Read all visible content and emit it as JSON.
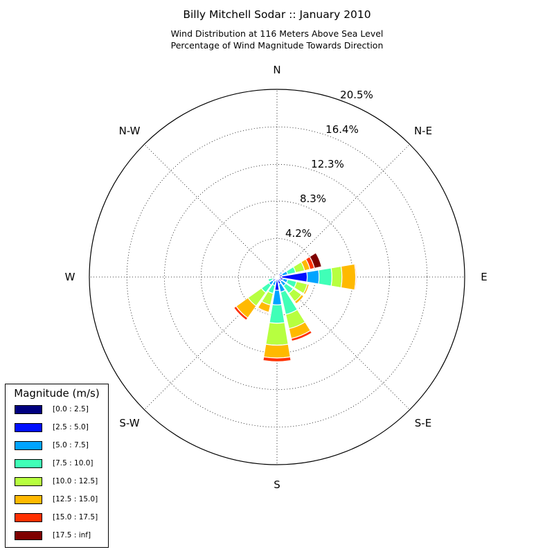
{
  "chart_data": {
    "type": "wind-rose",
    "title": "Billy Mitchell Sodar :: January 2010",
    "subtitle_lines": [
      "Wind Distribution at 116 Meters Above Sea Level",
      "Percentage of Wind Magnitude Towards Direction"
    ],
    "direction_labels": [
      {
        "name": "N",
        "angle": 0
      },
      {
        "name": "N-E",
        "angle": 45
      },
      {
        "name": "E",
        "angle": 90
      },
      {
        "name": "S-E",
        "angle": 135
      },
      {
        "name": "S",
        "angle": 180
      },
      {
        "name": "S-W",
        "angle": 225
      },
      {
        "name": "W",
        "angle": 270
      },
      {
        "name": "N-W",
        "angle": 315
      }
    ],
    "radial_ticks": [
      4.2,
      8.3,
      12.3,
      16.4,
      20.5
    ],
    "radial_tick_labels": [
      "4.2%",
      "8.3%",
      "12.3%",
      "16.4%",
      "20.5%"
    ],
    "rmax": 20.5,
    "legend_title": "Magnitude (m/s)",
    "bins": [
      {
        "label": "[0.0 : 2.5]",
        "color": "#00007f"
      },
      {
        "label": "[2.5 : 5.0]",
        "color": "#0010ff"
      },
      {
        "label": "[5.0 : 7.5]",
        "color": "#00a4ff"
      },
      {
        "label": "[7.5 : 10.0]",
        "color": "#40ffb7"
      },
      {
        "label": "[10.0 : 12.5]",
        "color": "#b7ff40"
      },
      {
        "label": "[12.5 : 15.0]",
        "color": "#ffb900"
      },
      {
        "label": "[15.0 : 17.5]",
        "color": "#ff3000"
      },
      {
        "label": "[17.5 : inf]",
        "color": "#7f0000"
      }
    ],
    "sectors": [
      {
        "direction": 0,
        "values": [
          0.1,
          0.1,
          0.0,
          0.0,
          0.0,
          0.0,
          0.0,
          0.0
        ]
      },
      {
        "direction": 22.5,
        "values": [
          0.15,
          0.1,
          0.1,
          0.0,
          0.0,
          0.0,
          0.0,
          0.0
        ]
      },
      {
        "direction": 45,
        "values": [
          0.2,
          0.3,
          0.2,
          0.0,
          0.0,
          0.0,
          0.0,
          0.0
        ]
      },
      {
        "direction": 67.5,
        "values": [
          0.2,
          0.4,
          0.6,
          0.9,
          1.0,
          0.6,
          0.5,
          0.8
        ]
      },
      {
        "direction": 90,
        "values": [
          0.5,
          2.8,
          1.3,
          1.4,
          1.1,
          1.5,
          0.1,
          0.0
        ]
      },
      {
        "direction": 112.5,
        "values": [
          0.3,
          0.4,
          0.5,
          1.0,
          1.2,
          0.2,
          0.0,
          0.0
        ]
      },
      {
        "direction": 135,
        "values": [
          0.2,
          0.4,
          0.6,
          1.0,
          1.1,
          0.3,
          0.0,
          0.0
        ]
      },
      {
        "direction": 157.5,
        "values": [
          0.2,
          0.6,
          0.9,
          2.5,
          1.6,
          1.1,
          0.3,
          0.0
        ]
      },
      {
        "direction": 180,
        "values": [
          0.15,
          1.3,
          1.6,
          2.0,
          2.4,
          1.4,
          0.4,
          0.0
        ]
      },
      {
        "direction": 202.5,
        "values": [
          0.15,
          0.3,
          0.5,
          0.9,
          1.3,
          0.8,
          0.1,
          0.1
        ]
      },
      {
        "direction": 225,
        "values": [
          0.2,
          0.4,
          0.5,
          1.0,
          1.8,
          1.6,
          0.3,
          0.0
        ]
      },
      {
        "direction": 247.5,
        "values": [
          0.1,
          0.2,
          0.2,
          0.5,
          0.0,
          0.0,
          0.0,
          0.0
        ]
      },
      {
        "direction": 270,
        "values": [
          0.1,
          0.0,
          0.0,
          0.0,
          0.0,
          0.0,
          0.0,
          0.0
        ]
      },
      {
        "direction": 292.5,
        "values": [
          0.05,
          0.0,
          0.0,
          0.0,
          0.0,
          0.0,
          0.0,
          0.0
        ]
      },
      {
        "direction": 315,
        "values": [
          0.05,
          0.0,
          0.0,
          0.0,
          0.0,
          0.0,
          0.0,
          0.0
        ]
      },
      {
        "direction": 337.5,
        "values": [
          0.05,
          0.0,
          0.0,
          0.0,
          0.0,
          0.0,
          0.0,
          0.0
        ]
      }
    ]
  }
}
